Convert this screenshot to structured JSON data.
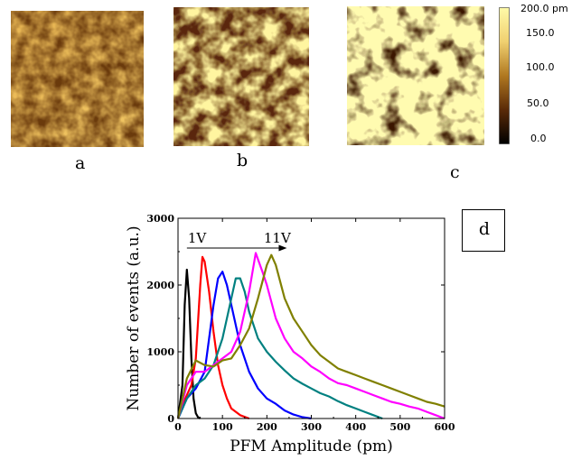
{
  "figure": {
    "panels": [
      {
        "id": "a",
        "label": "a"
      },
      {
        "id": "b",
        "label": "b"
      },
      {
        "id": "c",
        "label": "c"
      }
    ],
    "colorbar": {
      "labels": [
        "200.0 pm",
        "150.0",
        "100.0",
        "50.0",
        "0.0"
      ],
      "colors": [
        "#fffaa8",
        "#f0d070",
        "#b07820",
        "#5a2a08",
        "#000000"
      ]
    },
    "panel_d_label": "d"
  },
  "chart_data": {
    "type": "line",
    "title": "",
    "xlabel": "PFM Amplitude (pm)",
    "ylabel": "Number of events (a.u.)",
    "xlim": [
      0,
      600
    ],
    "ylim": [
      0,
      3000
    ],
    "xticks": [
      "0",
      "100",
      "200",
      "300",
      "400",
      "500",
      "600"
    ],
    "yticks": [
      "0",
      "1000",
      "2000",
      "3000"
    ],
    "annotation": {
      "start": "1V",
      "end": "11V",
      "arrow": "right"
    },
    "series": [
      {
        "color": "#000000",
        "x": [
          0,
          10,
          15,
          20,
          25,
          30,
          35,
          40,
          45,
          50
        ],
        "y": [
          0,
          500,
          1700,
          2230,
          1800,
          900,
          300,
          80,
          20,
          0
        ]
      },
      {
        "color": "#ff0000",
        "x": [
          0,
          10,
          20,
          30,
          40,
          50,
          55,
          60,
          70,
          80,
          90,
          100,
          110,
          120,
          140,
          160
        ],
        "y": [
          0,
          200,
          350,
          500,
          900,
          2000,
          2420,
          2350,
          1900,
          1300,
          800,
          500,
          300,
          150,
          50,
          0
        ]
      },
      {
        "color": "#0000ff",
        "x": [
          0,
          20,
          40,
          60,
          80,
          90,
          100,
          110,
          120,
          140,
          160,
          180,
          200,
          220,
          240,
          260,
          280,
          300
        ],
        "y": [
          0,
          300,
          450,
          700,
          1700,
          2100,
          2200,
          2000,
          1700,
          1100,
          700,
          450,
          300,
          220,
          120,
          60,
          20,
          0
        ]
      },
      {
        "color": "#008080",
        "x": [
          0,
          20,
          40,
          60,
          80,
          100,
          120,
          130,
          140,
          150,
          160,
          180,
          200,
          220,
          240,
          260,
          280,
          300,
          320,
          340,
          360,
          380,
          400,
          420,
          440,
          460
        ],
        "y": [
          0,
          300,
          500,
          600,
          800,
          1200,
          1800,
          2100,
          2100,
          1900,
          1600,
          1200,
          1000,
          850,
          720,
          600,
          520,
          450,
          380,
          330,
          260,
          200,
          150,
          100,
          50,
          0
        ]
      },
      {
        "color": "#ff00ff",
        "x": [
          0,
          20,
          40,
          60,
          80,
          100,
          120,
          140,
          160,
          175,
          190,
          200,
          220,
          240,
          260,
          280,
          300,
          320,
          340,
          360,
          380,
          400,
          420,
          440,
          460,
          480,
          500,
          520,
          540,
          560,
          580,
          600
        ],
        "y": [
          0,
          500,
          700,
          700,
          800,
          900,
          1000,
          1300,
          1900,
          2480,
          2200,
          2000,
          1500,
          1200,
          1000,
          900,
          780,
          700,
          600,
          530,
          500,
          450,
          400,
          350,
          300,
          250,
          220,
          180,
          150,
          100,
          50,
          0
        ]
      },
      {
        "color": "#808000",
        "x": [
          0,
          20,
          40,
          60,
          80,
          100,
          120,
          140,
          160,
          180,
          200,
          210,
          220,
          240,
          260,
          280,
          300,
          320,
          340,
          360,
          380,
          400,
          420,
          440,
          460,
          480,
          500,
          520,
          540,
          560,
          580,
          600
        ],
        "y": [
          0,
          600,
          870,
          800,
          780,
          870,
          900,
          1100,
          1350,
          1800,
          2300,
          2450,
          2300,
          1800,
          1500,
          1300,
          1100,
          950,
          850,
          750,
          700,
          650,
          600,
          550,
          500,
          450,
          400,
          350,
          300,
          250,
          220,
          180
        ]
      }
    ]
  }
}
